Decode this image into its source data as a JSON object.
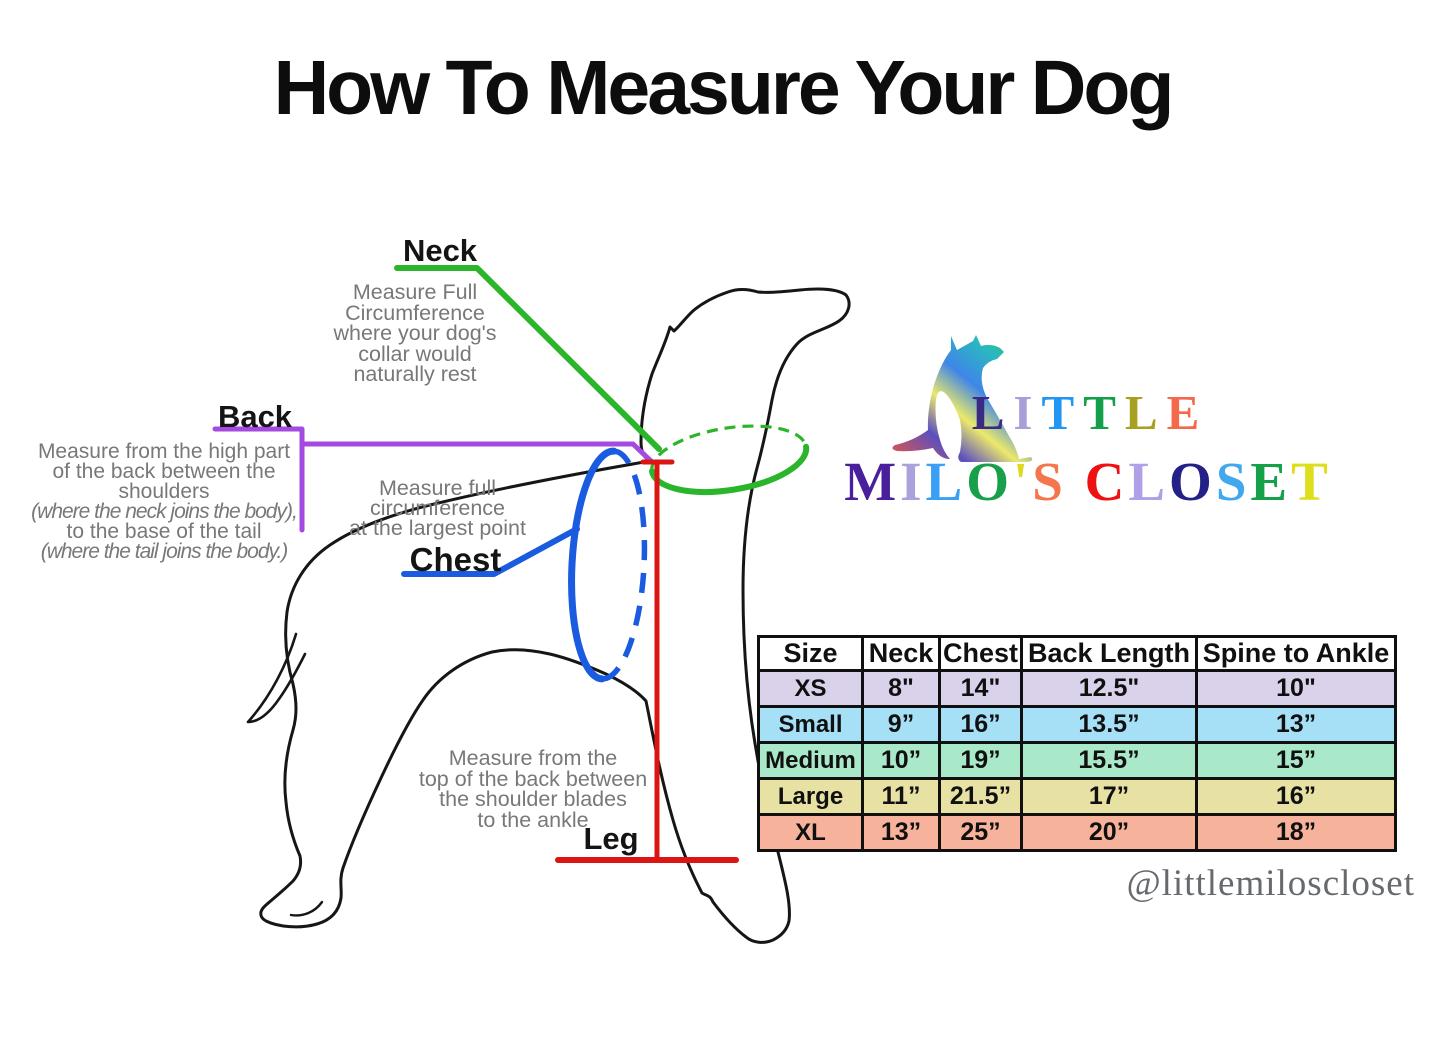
{
  "title": "How To Measure Your Dog",
  "annotations": {
    "neck": {
      "label": "Neck",
      "desc": "Measure Full\nCircumference\nwhere your dog's\ncollar would\nnaturally rest"
    },
    "back": {
      "label": "Back",
      "lines": [
        "Measure from the high part",
        "of the back between the",
        "shoulders",
        "(where the neck joins the body),",
        "to the base of the tail",
        "(where the tail joins the body.)"
      ]
    },
    "chest": {
      "label": "Chest",
      "desc": "Measure full\ncircumference\nat the largest point"
    },
    "leg": {
      "label": "Leg",
      "desc": "Measure from the\ntop of the back between\nthe shoulder blades\nto the ankle"
    }
  },
  "logo": {
    "line1": [
      {
        "ch": "L",
        "color": "#3a2a85"
      },
      {
        "ch": "I",
        "color": "#a79fd8"
      },
      {
        "ch": "T",
        "color": "#2196f3"
      },
      {
        "ch": "T",
        "color": "#14a04a"
      },
      {
        "ch": "L",
        "color": "#a8a020"
      },
      {
        "ch": "E",
        "color": "#f4694b"
      }
    ],
    "line2": [
      {
        "ch": "M",
        "color": "#4a1f9e"
      },
      {
        "ch": "I",
        "color": "#aaa2dc"
      },
      {
        "ch": "L",
        "color": "#3aa0f5"
      },
      {
        "ch": "O",
        "color": "#16a04a"
      },
      {
        "ch": "'",
        "color": "#e0d820"
      },
      {
        "ch": "S",
        "color": "#f4764b"
      },
      {
        "ch": " ",
        "color": "#000000"
      },
      {
        "ch": "C",
        "color": "#ee1111"
      },
      {
        "ch": "L",
        "color": "#b0a0e8"
      },
      {
        "ch": "O",
        "color": "#232188"
      },
      {
        "ch": "S",
        "color": "#42a8ee"
      },
      {
        "ch": "E",
        "color": "#16a04a"
      },
      {
        "ch": "T",
        "color": "#dede1a"
      }
    ],
    "handle": "@littlemiloscloset"
  },
  "table": {
    "headers": [
      "Size",
      "Neck",
      "Chest",
      "Back Length",
      "Spine to Ankle"
    ],
    "rows": [
      {
        "size": "XS",
        "neck": "8\"",
        "chest": "14\"",
        "back": "12.5\"",
        "spine": "10\"",
        "color": "#d9d2ea"
      },
      {
        "size": "Small",
        "neck": "9”",
        "chest": "16”",
        "back": "13.5”",
        "spine": "13”",
        "color": "#a6e0f7"
      },
      {
        "size": "Medium",
        "neck": "10”",
        "chest": "19”",
        "back": "15.5”",
        "spine": "15”",
        "color": "#a9e8c9"
      },
      {
        "size": "Large",
        "neck": "11”",
        "chest": "21.5”",
        "back": "17”",
        "spine": "16”",
        "color": "#e7e1a3"
      },
      {
        "size": "XL",
        "neck": "13”",
        "chest": "25”",
        "back": "20”",
        "spine": "18”",
        "color": "#f6b29b"
      }
    ]
  },
  "colors": {
    "neck_line": "#2ab52a",
    "back_line": "#a44ae0",
    "chest_line": "#1a5be0",
    "leg_line": "#dd1414",
    "desc_text": "#787878",
    "outline": "#161616"
  }
}
